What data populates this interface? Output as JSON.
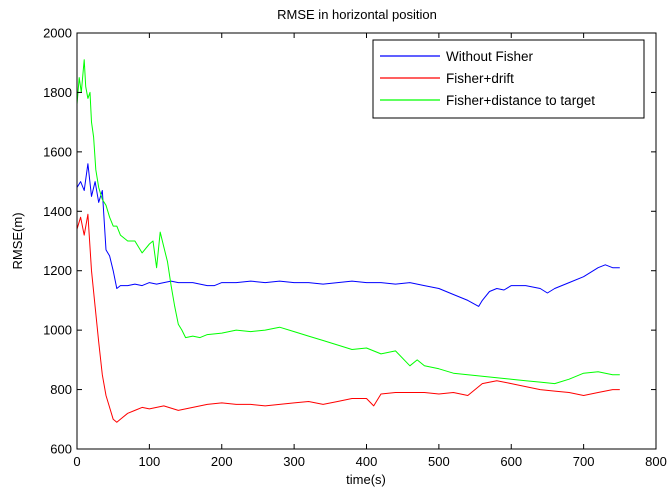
{
  "chart_data": {
    "type": "line",
    "title": "RMSE in horizontal position",
    "xlabel": "time(s)",
    "ylabel": "RMSE(m)",
    "xlim": [
      0,
      800
    ],
    "ylim": [
      600,
      2000
    ],
    "xticks": [
      "0",
      "100",
      "200",
      "300",
      "400",
      "500",
      "600",
      "700",
      "800"
    ],
    "yticks": [
      "600",
      "800",
      "1000",
      "1200",
      "1400",
      "1600",
      "1800",
      "2000"
    ],
    "grid": false,
    "legend_position": "top-right",
    "series": [
      {
        "name": "Without Fisher",
        "color": "#0000ff",
        "x": [
          0,
          5,
          10,
          15,
          20,
          25,
          30,
          35,
          40,
          45,
          50,
          55,
          60,
          70,
          80,
          90,
          100,
          110,
          120,
          130,
          140,
          150,
          160,
          170,
          180,
          190,
          200,
          220,
          240,
          260,
          280,
          300,
          320,
          340,
          360,
          380,
          400,
          420,
          440,
          460,
          480,
          500,
          520,
          540,
          555,
          560,
          570,
          580,
          590,
          600,
          620,
          640,
          650,
          660,
          680,
          700,
          720,
          730,
          740,
          750
        ],
        "y": [
          1480,
          1500,
          1470,
          1560,
          1450,
          1500,
          1430,
          1470,
          1270,
          1250,
          1200,
          1140,
          1150,
          1150,
          1155,
          1150,
          1160,
          1155,
          1160,
          1165,
          1160,
          1160,
          1160,
          1155,
          1150,
          1150,
          1160,
          1160,
          1165,
          1160,
          1165,
          1160,
          1160,
          1155,
          1160,
          1165,
          1160,
          1160,
          1155,
          1160,
          1150,
          1140,
          1120,
          1100,
          1080,
          1100,
          1130,
          1140,
          1135,
          1150,
          1150,
          1140,
          1125,
          1140,
          1160,
          1180,
          1210,
          1220,
          1210,
          1210
        ]
      },
      {
        "name": "Fisher+drift",
        "color": "#ff0000",
        "x": [
          0,
          5,
          10,
          15,
          20,
          25,
          30,
          35,
          40,
          45,
          50,
          55,
          60,
          70,
          80,
          90,
          100,
          120,
          140,
          160,
          180,
          200,
          220,
          240,
          260,
          280,
          300,
          320,
          340,
          360,
          380,
          400,
          410,
          420,
          440,
          460,
          480,
          500,
          520,
          540,
          560,
          580,
          600,
          620,
          640,
          660,
          680,
          700,
          720,
          740,
          750
        ],
        "y": [
          1340,
          1380,
          1320,
          1390,
          1200,
          1080,
          960,
          850,
          780,
          740,
          700,
          690,
          700,
          720,
          730,
          740,
          735,
          745,
          730,
          740,
          750,
          755,
          750,
          750,
          745,
          750,
          755,
          760,
          750,
          760,
          770,
          770,
          745,
          785,
          790,
          790,
          790,
          785,
          790,
          780,
          820,
          830,
          820,
          810,
          800,
          795,
          790,
          780,
          790,
          800,
          800
        ]
      },
      {
        "name": "Fisher+distance to target",
        "color": "#00ff00",
        "x": [
          0,
          3,
          6,
          10,
          12,
          15,
          18,
          20,
          23,
          26,
          30,
          35,
          40,
          45,
          50,
          55,
          60,
          70,
          80,
          90,
          100,
          105,
          110,
          115,
          120,
          125,
          130,
          135,
          140,
          145,
          150,
          160,
          170,
          180,
          200,
          220,
          240,
          260,
          280,
          300,
          320,
          340,
          360,
          380,
          400,
          420,
          440,
          460,
          470,
          480,
          500,
          520,
          540,
          560,
          580,
          600,
          620,
          640,
          660,
          680,
          700,
          720,
          740,
          750
        ],
        "y": [
          1760,
          1850,
          1800,
          1910,
          1820,
          1780,
          1800,
          1700,
          1650,
          1540,
          1480,
          1440,
          1420,
          1380,
          1350,
          1350,
          1320,
          1300,
          1300,
          1260,
          1290,
          1300,
          1210,
          1330,
          1280,
          1230,
          1150,
          1080,
          1020,
          1000,
          975,
          980,
          975,
          985,
          990,
          1000,
          995,
          1000,
          1010,
          995,
          980,
          965,
          950,
          935,
          940,
          920,
          930,
          880,
          900,
          880,
          870,
          855,
          850,
          845,
          840,
          835,
          830,
          825,
          820,
          835,
          855,
          860,
          850,
          850
        ]
      }
    ]
  }
}
